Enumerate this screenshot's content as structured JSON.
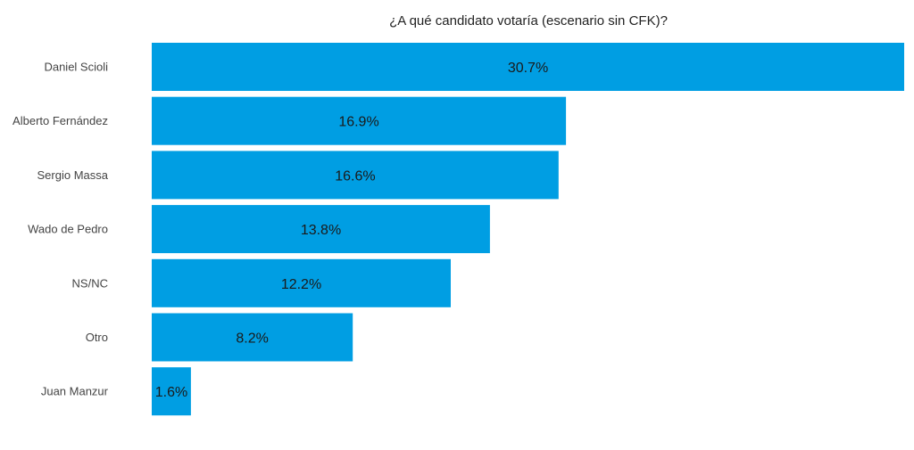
{
  "chart_data": {
    "type": "bar",
    "orientation": "horizontal",
    "title": "¿A qué candidato votaría (escenario sin CFK)?",
    "xlabel": "",
    "ylabel": "",
    "categories": [
      "Daniel Scioli",
      "Alberto Fernández",
      "Sergio Massa",
      "Wado de Pedro",
      "NS/NC",
      "Otro",
      "Juan Manzur"
    ],
    "values": [
      30.7,
      16.9,
      16.6,
      13.8,
      12.2,
      8.2,
      1.6
    ],
    "value_labels": [
      "30.7%",
      "16.9%",
      "16.6%",
      "13.8%",
      "12.2%",
      "8.2%",
      "1.6%"
    ],
    "xlim": [
      0,
      30.7
    ],
    "grid": false,
    "legend": "none",
    "bar_color": "#009ee3"
  }
}
